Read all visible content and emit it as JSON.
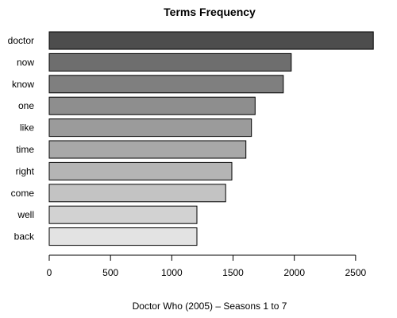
{
  "chart_data": {
    "type": "bar",
    "orientation": "horizontal",
    "title": "Terms Frequency",
    "xlabel": "Doctor Who (2005) – Seasons 1 to 7",
    "ylabel": "",
    "categories": [
      "doctor",
      "now",
      "know",
      "one",
      "like",
      "time",
      "right",
      "come",
      "well",
      "back"
    ],
    "values": [
      2645,
      1975,
      1910,
      1680,
      1650,
      1605,
      1490,
      1440,
      1205,
      1205
    ],
    "bar_colors": [
      "#4d4d4d",
      "#6e6e6e",
      "#7f7f7f",
      "#8e8e8e",
      "#9b9b9b",
      "#a8a8a8",
      "#b5b5b5",
      "#c3c3c3",
      "#d2d2d2",
      "#e3e3e3"
    ],
    "xlim": [
      0,
      2650
    ],
    "xticks": [
      0,
      500,
      1000,
      1500,
      2000,
      2500
    ],
    "grid": false,
    "legend": "none"
  }
}
